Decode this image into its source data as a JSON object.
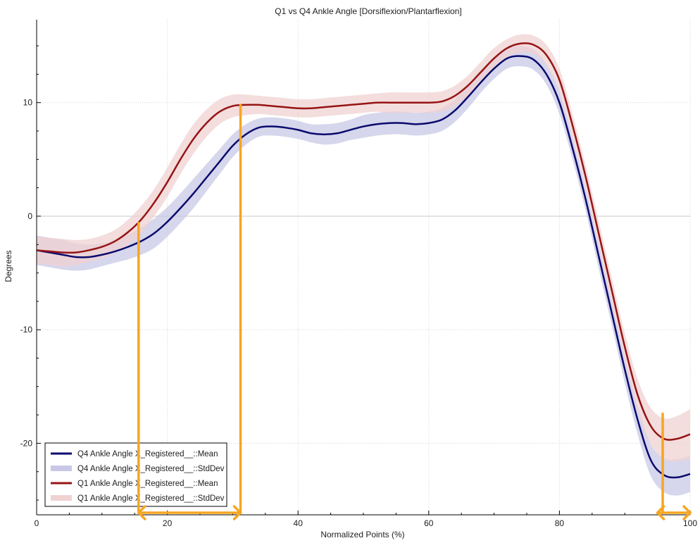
{
  "chart_data": {
    "type": "line",
    "title": "Q1 vs Q4 Ankle Angle [Dorsiflexion/Plantarflexion]",
    "xlabel": "Normalized Points (%)",
    "ylabel": "Degrees",
    "xlim": [
      0,
      100
    ],
    "ylim": [
      -26.3,
      17.3
    ],
    "x_ticks": [
      0,
      20,
      40,
      60,
      80,
      100
    ],
    "y_ticks": [
      -20,
      -10,
      0,
      10
    ],
    "grid": true,
    "legend_position": "bottom-left",
    "x": [
      0,
      2,
      4,
      6,
      8,
      10,
      12,
      14,
      16,
      18,
      20,
      22,
      24,
      26,
      28,
      30,
      32,
      34,
      36,
      38,
      40,
      42,
      44,
      46,
      48,
      50,
      52,
      54,
      56,
      58,
      60,
      62,
      64,
      66,
      68,
      70,
      72,
      74,
      76,
      78,
      80,
      82,
      84,
      86,
      88,
      90,
      92,
      94,
      96,
      98,
      100
    ],
    "series": [
      {
        "name": "Q4 Ankle Angle X_Registered__::Mean",
        "color": "#0a0a6e",
        "kind": "mean",
        "values": [
          -3.0,
          -3.2,
          -3.4,
          -3.6,
          -3.6,
          -3.4,
          -3.1,
          -2.7,
          -2.2,
          -1.5,
          -0.5,
          0.7,
          2.0,
          3.4,
          4.8,
          6.2,
          7.2,
          7.8,
          7.9,
          7.8,
          7.6,
          7.3,
          7.2,
          7.3,
          7.6,
          7.9,
          8.1,
          8.2,
          8.2,
          8.1,
          8.2,
          8.5,
          9.3,
          10.5,
          11.8,
          13.0,
          13.9,
          14.1,
          13.8,
          12.5,
          10.0,
          6.0,
          1.5,
          -3.5,
          -8.5,
          -13.5,
          -18.0,
          -21.5,
          -22.8,
          -23.0,
          -22.7
        ]
      },
      {
        "name": "Q4 Ankle Angle X_Registered__::StdDev",
        "color": "#c8c8e6",
        "kind": "band",
        "of": "Q4 Ankle Angle X_Registered__::Mean",
        "sd": [
          1.3,
          1.3,
          1.3,
          1.2,
          1.1,
          1.0,
          1.0,
          1.1,
          1.2,
          1.3,
          1.3,
          1.3,
          1.3,
          1.2,
          1.1,
          1.0,
          0.9,
          0.8,
          0.8,
          0.8,
          0.8,
          0.8,
          0.9,
          0.9,
          0.9,
          1.0,
          1.0,
          1.0,
          1.0,
          1.0,
          1.0,
          1.0,
          1.0,
          1.0,
          0.9,
          0.9,
          0.9,
          0.9,
          0.9,
          0.9,
          1.0,
          1.0,
          1.0,
          1.1,
          1.1,
          1.2,
          1.3,
          1.4,
          1.5,
          1.6,
          1.6
        ]
      },
      {
        "name": "Q1 Ankle Angle X_Registered__::Mean",
        "color": "#961414",
        "kind": "mean",
        "values": [
          -3.0,
          -3.1,
          -3.2,
          -3.2,
          -3.0,
          -2.7,
          -2.2,
          -1.4,
          -0.3,
          1.2,
          3.0,
          5.0,
          6.8,
          8.2,
          9.2,
          9.7,
          9.8,
          9.8,
          9.7,
          9.6,
          9.5,
          9.5,
          9.6,
          9.7,
          9.8,
          9.9,
          10.0,
          10.0,
          10.0,
          10.0,
          10.0,
          10.1,
          10.6,
          11.5,
          12.7,
          13.9,
          14.8,
          15.2,
          15.1,
          14.2,
          12.0,
          8.0,
          3.5,
          -1.5,
          -6.5,
          -11.5,
          -15.8,
          -18.5,
          -19.6,
          -19.6,
          -19.2
        ]
      },
      {
        "name": "Q1 Ankle Angle X_Registered__::StdDev",
        "color": "#f0d2d2",
        "kind": "band",
        "of": "Q1 Ankle Angle X_Registered__::Mean",
        "sd": [
          1.2,
          1.2,
          1.2,
          1.1,
          1.0,
          1.0,
          1.0,
          1.1,
          1.2,
          1.2,
          1.3,
          1.3,
          1.3,
          1.2,
          1.1,
          1.0,
          0.9,
          0.8,
          0.8,
          0.8,
          0.8,
          0.8,
          0.8,
          0.8,
          0.8,
          0.8,
          0.8,
          0.9,
          0.9,
          0.9,
          0.9,
          0.9,
          0.9,
          0.9,
          0.9,
          0.9,
          0.8,
          0.8,
          0.8,
          0.9,
          1.0,
          1.0,
          1.0,
          1.1,
          1.1,
          1.2,
          1.4,
          1.6,
          1.8,
          2.0,
          2.2
        ]
      }
    ],
    "annotations": [
      {
        "type": "vline",
        "x": 15.6,
        "from_y": -0.6,
        "color": "#f5a623"
      },
      {
        "type": "vline",
        "x": 31.2,
        "from_y": 9.8,
        "color": "#f5a623"
      },
      {
        "type": "hline",
        "x1": 15.6,
        "x2": 31.2,
        "color": "#f5a623",
        "arrows": "both"
      },
      {
        "type": "vline",
        "x": 95.8,
        "from_y": -17.4,
        "color": "#f5a623"
      },
      {
        "type": "hline",
        "x1": 95.0,
        "x2": 100.0,
        "color": "#f5a623",
        "arrows": "both"
      }
    ]
  }
}
